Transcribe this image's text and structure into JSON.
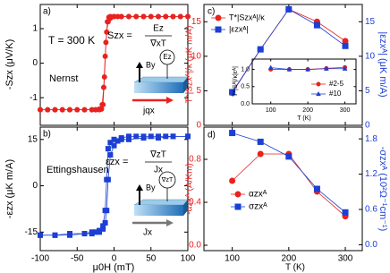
{
  "chart_data": [
    {
      "type": "scatter",
      "xlim": [
        -100,
        100
      ],
      "xticks": [
        -100,
        -50,
        0,
        50,
        100
      ],
      "ylim": [
        -1.8,
        1.7
      ],
      "yticks": [
        -1,
        0,
        1
      ],
      "ylabel": "-Szx (μV/K)",
      "annotations": [
        "a)",
        "T = 300 K",
        "Nernst",
        "Szx =",
        "Ez",
        "∇xT",
        "By",
        "Ez",
        "jqx"
      ],
      "series": [
        {
          "color": "#e8221f",
          "marker": "circle",
          "x": [
            -100,
            -90,
            -80,
            -70,
            -60,
            -50,
            -40,
            -30,
            -25,
            -20,
            -17,
            -15,
            -13,
            -11,
            -9,
            -7,
            -5,
            0,
            10,
            20,
            30,
            40,
            50,
            60,
            70,
            80,
            90,
            100
          ],
          "values": [
            -1.35,
            -1.35,
            -1.35,
            -1.35,
            -1.35,
            -1.35,
            -1.35,
            -1.35,
            -1.35,
            -1.35,
            -1.33,
            -1.2,
            -0.4,
            0.6,
            1.2,
            1.33,
            1.35,
            1.35,
            1.35,
            1.35,
            1.35,
            1.35,
            1.35,
            1.35,
            1.35,
            1.35,
            1.35,
            1.35
          ]
        },
        {
          "color": "#e8221f",
          "marker": "circle",
          "x": [
            100,
            90,
            80,
            70,
            60,
            50,
            40,
            30,
            20,
            10,
            5,
            0,
            -5,
            -8,
            -10,
            -12,
            -14,
            -16,
            -20,
            -25,
            -30,
            -40,
            -50,
            -60,
            -70,
            -80,
            -90,
            -100
          ],
          "values": [
            1.35,
            1.35,
            1.35,
            1.35,
            1.35,
            1.35,
            1.35,
            1.35,
            1.35,
            1.35,
            1.35,
            1.35,
            1.3,
            1.2,
            0.9,
            0.2,
            -0.7,
            -1.2,
            -1.33,
            -1.35,
            -1.35,
            -1.35,
            -1.35,
            -1.35,
            -1.35,
            -1.35,
            -1.35,
            -1.35
          ]
        }
      ]
    },
    {
      "type": "scatter",
      "xlim": [
        -100,
        100
      ],
      "xticks": [
        -100,
        -50,
        0,
        50,
        100
      ],
      "ylim": [
        -21,
        19
      ],
      "yticks": [
        -15,
        0,
        15
      ],
      "xlabel": "μ0H (mT)",
      "ylabel": "-εzx (μK m/A)",
      "annotations": [
        "b)",
        "Ettingshausen",
        "εzx =",
        "∇zT",
        "Jx",
        "By",
        "∇zT",
        "Jx"
      ],
      "series": [
        {
          "color": "#1c3fd4",
          "marker": "square",
          "x": [
            -100,
            -80,
            -60,
            -40,
            -30,
            -25,
            -20,
            -15,
            -12,
            -10,
            -8,
            -5,
            0,
            10,
            20,
            30,
            40,
            50,
            60,
            70,
            80,
            100
          ],
          "values": [
            -16,
            -16,
            -15.5,
            -15.5,
            -15,
            -15,
            -14.5,
            -13,
            -8,
            2,
            12,
            14,
            15,
            15.5,
            16,
            16,
            16,
            16,
            16,
            16,
            16,
            16
          ]
        },
        {
          "color": "#1c3fd4",
          "marker": "square",
          "x": [
            100,
            80,
            60,
            40,
            20,
            10,
            5,
            0,
            -5,
            -8,
            -10,
            -12,
            -15,
            -20,
            -30,
            -40,
            -60,
            -80,
            -100
          ],
          "values": [
            16,
            16,
            15.5,
            15.5,
            15,
            15,
            14.5,
            13,
            10,
            2,
            -8,
            -12,
            -14,
            -15,
            -15.5,
            -15.5,
            -16,
            -16,
            -16
          ]
        }
      ]
    },
    {
      "type": "line",
      "xlim": [
        50,
        330
      ],
      "xticks": [
        100,
        200,
        300
      ],
      "ylim": [
        0,
        17.5
      ],
      "yticks": [
        0,
        5,
        10,
        15
      ],
      "y2lim": [
        0,
        17.5
      ],
      "y2ticks": [
        0,
        5,
        10,
        15
      ],
      "ylabel": "T*|Szxᴬ|/κ (μK m/A)",
      "y2label": "|εzxᴬ| (μK m/A)",
      "annotations": [
        "c)"
      ],
      "x": [
        100,
        150,
        200,
        250,
        300
      ],
      "series": [
        {
          "name": "T*|Szxᴬ|/κ",
          "color": "#e8221f",
          "marker": "circle",
          "values": [
            4.7,
            11,
            16.8,
            15,
            12.2
          ]
        },
        {
          "name": "|εzxᴬ|",
          "color": "#1c3fd4",
          "marker": "square",
          "axis": "y2",
          "values": [
            4.8,
            11,
            16.8,
            14.5,
            11.5
          ]
        }
      ],
      "inset": {
        "xlim": [
          50,
          330
        ],
        "xticks": [
          100,
          200,
          300
        ],
        "ylim": [
          0,
          1.3
        ],
        "yticks": [
          {
            "value": 0,
            "label": "0.0"
          },
          0.5,
          {
            "value": 1,
            "label": "1.0"
          }
        ],
        "xlabel": "T (K)",
        "ylabel": "T*|Sᴬ|/κ|εᴬ|",
        "x": [
          100,
          150,
          200,
          250,
          300
        ],
        "series": [
          {
            "name": "#2-5",
            "color": "#e8221f",
            "marker": "circle",
            "values": [
              1.0,
              1.0,
              1.0,
              1.03,
              1.06
            ]
          },
          {
            "name": "#10",
            "color": "#1c3fd4",
            "marker": "triangle",
            "values": [
              1.05,
              1.0,
              1.0,
              1.02,
              1.02
            ]
          }
        ]
      }
    },
    {
      "type": "line",
      "xlim": [
        50,
        330
      ],
      "xticks": [
        100,
        200,
        300
      ],
      "ylim": [
        -0.05,
        1.1
      ],
      "yticks": [
        {
          "value": 0,
          "label": "0.0"
        },
        0.4,
        0.8
      ],
      "y2lim": [
        -0.1,
        2.0
      ],
      "y2ticks": [
        {
          "value": 0,
          "label": "0.0"
        },
        0.6,
        1.2,
        1.8
      ],
      "xlabel": "T (K)",
      "ylabel": "-αzxᴬ (A/Km)",
      "y2label": "-σzxᴬ (10²Ω⁻¹cm⁻¹)",
      "annotations": [
        "d)"
      ],
      "x": [
        100,
        150,
        200,
        250,
        300
      ],
      "series": [
        {
          "name": "αzxᴬ",
          "color": "#e8221f",
          "marker": "circle",
          "values": [
            0.6,
            0.85,
            0.85,
            0.5,
            0.27
          ]
        },
        {
          "name": "σzxᴬ",
          "color": "#1c3fd4",
          "marker": "square",
          "axis": "y2",
          "values": [
            1.9,
            1.75,
            1.5,
            0.95,
            0.55
          ]
        }
      ]
    }
  ]
}
